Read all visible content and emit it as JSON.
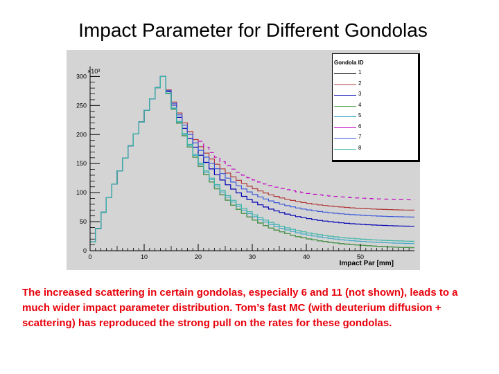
{
  "slide": {
    "title": "Impact Parameter for Different Gondolas",
    "caption": "The increased scattering in certain gondolas, especially 6 and 11 (not shown), leads to a much wider impact parameter distribution.  Tom’s fast MC (with deuterium diffusion + scattering) has reproduced the strong pull on the rates for these gondolas.",
    "caption_color": "#e8000b"
  },
  "chart_data": {
    "type": "line",
    "style": "step histogram",
    "title": "",
    "xlabel": "Impact Par [mm]",
    "ylabel": "",
    "y_multiplier_label": "×10³",
    "xlim": [
      0,
      60
    ],
    "ylim": [
      0,
      310
    ],
    "x_ticks": [
      0,
      10,
      20,
      30,
      40,
      50
    ],
    "y_ticks": [
      0,
      50,
      100,
      150,
      200,
      250,
      300
    ],
    "bin_width": 1,
    "grid": false,
    "background": "#d4d4d4",
    "legend": {
      "title": "Gondola ID",
      "position": "top-right"
    },
    "series": [
      {
        "name": "1",
        "color": "#000000",
        "peak": 300,
        "peak_x": 13.5,
        "tail": 3.0,
        "start": 0,
        "dashed": false
      },
      {
        "name": "2",
        "color": "#b23a3a",
        "peak": 300,
        "peak_x": 13.5,
        "tail": 68,
        "start": 0,
        "dashed": false
      },
      {
        "name": "3",
        "color": "#0000b4",
        "peak": 300,
        "peak_x": 13.5,
        "tail": 40,
        "start": 0,
        "dashed": false
      },
      {
        "name": "4",
        "color": "#4ea24e",
        "peak": 300,
        "peak_x": 13.5,
        "tail": 3.0,
        "start": 0,
        "dashed": false
      },
      {
        "name": "5",
        "color": "#3ba8c4",
        "peak": 300,
        "peak_x": 13.5,
        "tail": 10,
        "start": 0,
        "dashed": false
      },
      {
        "name": "6",
        "color": "#c000c0",
        "peak": 300,
        "peak_x": 13.5,
        "tail": 86,
        "start": 20,
        "dashed": true
      },
      {
        "name": "7",
        "color": "#3a56d8",
        "peak": 300,
        "peak_x": 13.5,
        "tail": 56,
        "start": 0,
        "dashed": false
      },
      {
        "name": "8",
        "color": "#3ab4a4",
        "peak": 300,
        "peak_x": 13.5,
        "tail": 14,
        "start": 0,
        "dashed": false
      }
    ]
  }
}
